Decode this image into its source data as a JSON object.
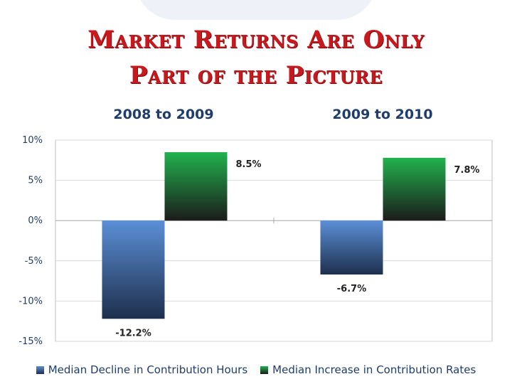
{
  "title_line1": "Market Returns Are Only",
  "title_line2": "Part of the Picture",
  "chart_data": {
    "type": "bar",
    "categories": [
      "2008 to 2009",
      "2009 to 2010"
    ],
    "series": [
      {
        "name": "Median Decline in Contribution Hours",
        "values": [
          -12.2,
          -6.7
        ],
        "color": "#4a7cc4"
      },
      {
        "name": "Median Increase in Contribution Rates",
        "values": [
          8.5,
          7.8
        ],
        "color": "#1fa64a"
      }
    ],
    "value_labels": [
      [
        "-12.2%",
        "-6.7%"
      ],
      [
        "8.5%",
        "7.8%"
      ]
    ],
    "ylim": [
      -15,
      10
    ],
    "yticks": [
      10,
      5,
      0,
      -5,
      -10,
      -15
    ],
    "ytick_labels": [
      "10%",
      "5%",
      "0%",
      "-5%",
      "-10%",
      "-15%"
    ],
    "grid": true,
    "legend_position": "bottom"
  }
}
